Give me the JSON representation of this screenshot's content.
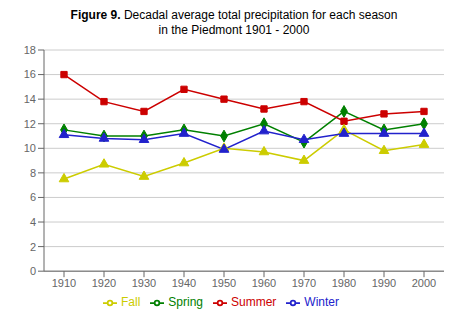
{
  "chart_data": {
    "type": "line",
    "title": "Figure 9. Decadal average total precipitation for each season\nin the Piedmont 1901 - 2000",
    "x": [
      1910,
      1920,
      1930,
      1940,
      1950,
      1960,
      1970,
      1980,
      1990,
      2000
    ],
    "series": [
      {
        "name": "Spring",
        "color": "#008000",
        "marker": "diamond",
        "values": [
          11.5,
          11.0,
          11.0,
          11.5,
          11.0,
          12.0,
          10.5,
          13.0,
          11.5,
          12.0
        ]
      },
      {
        "name": "Summer",
        "color": "#cc0000",
        "marker": "square",
        "values": [
          16.0,
          13.8,
          13.0,
          14.8,
          14.0,
          13.2,
          13.8,
          12.2,
          12.8,
          13.0
        ]
      },
      {
        "name": "Fall",
        "color": "#cccc00",
        "marker": "triangle",
        "values": [
          7.5,
          8.7,
          7.7,
          8.8,
          10.0,
          9.7,
          9.0,
          11.5,
          9.8,
          10.3
        ]
      },
      {
        "name": "Winter",
        "color": "#2222cc",
        "marker": "triangle",
        "values": [
          11.1,
          10.8,
          10.7,
          11.2,
          9.9,
          11.4,
          10.7,
          11.2,
          11.2,
          11.2
        ]
      }
    ],
    "xlim": [
      1905,
      2005
    ],
    "xticks": [
      1910,
      1920,
      1930,
      1940,
      1950,
      1960,
      1970,
      1980,
      1990,
      2000
    ],
    "ylim": [
      0,
      18
    ],
    "yticks": [
      0,
      2,
      4,
      6,
      8,
      10,
      12,
      14,
      16,
      18
    ],
    "grid": true,
    "legend": "bottom"
  }
}
